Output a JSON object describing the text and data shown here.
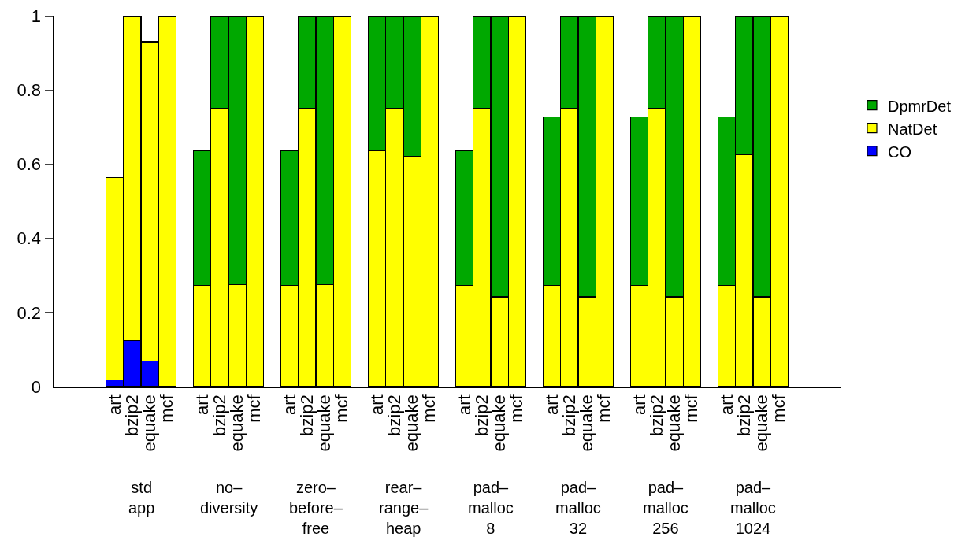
{
  "chart_data": {
    "type": "bar",
    "stacked": true,
    "categories": [
      null,
      null,
      null,
      "art",
      "bzip2",
      "equake",
      "mcf",
      null,
      "art",
      "bzip2",
      "equake",
      "mcf",
      null,
      "art",
      "bzip2",
      "equake",
      "mcf",
      null,
      "art",
      "bzip2",
      "equake",
      "mcf",
      null,
      "art",
      "bzip2",
      "equake",
      "mcf",
      null,
      "art",
      "bzip2",
      "equake",
      "mcf",
      null,
      "art",
      "bzip2",
      "equake",
      "mcf",
      null,
      "art",
      "bzip2",
      "equake",
      "mcf",
      null,
      null,
      null
    ],
    "series": [
      {
        "name": "CO",
        "color": "#0000ff",
        "values": [
          null,
          null,
          null,
          0.018,
          0.125,
          0.069,
          null,
          null,
          null,
          null,
          null,
          null,
          null,
          null,
          null,
          null,
          null,
          null,
          null,
          null,
          null,
          null,
          null,
          null,
          null,
          null,
          null,
          null,
          null,
          null,
          null,
          null,
          null,
          null,
          null,
          null,
          null,
          null,
          null,
          null,
          null,
          null,
          null,
          null,
          null
        ]
      },
      {
        "name": "NatDet",
        "color": "#ffff00",
        "values": [
          null,
          null,
          null,
          0.545,
          0.875,
          0.861,
          1,
          null,
          0.273,
          0.75,
          0.275,
          1,
          null,
          0.273,
          0.75,
          0.275,
          1,
          null,
          0.636,
          0.75,
          0.62,
          1,
          null,
          0.273,
          0.75,
          0.242,
          1,
          null,
          0.273,
          0.75,
          0.242,
          1,
          null,
          0.273,
          0.75,
          0.242,
          1,
          null,
          0.273,
          0.625,
          0.242,
          1,
          null,
          null,
          null
        ]
      },
      {
        "name": "DpmrDet",
        "color": "#00a800",
        "values": [
          null,
          null,
          null,
          null,
          null,
          null,
          null,
          null,
          0.364,
          0.25,
          0.725,
          null,
          null,
          0.364,
          0.25,
          0.725,
          null,
          null,
          0.364,
          0.25,
          0.38,
          null,
          null,
          0.364,
          0.25,
          0.758,
          null,
          null,
          0.455,
          0.25,
          0.758,
          null,
          null,
          0.455,
          0.25,
          0.758,
          null,
          null,
          0.455,
          0.375,
          0.758,
          null,
          null,
          null,
          null
        ]
      }
    ],
    "ylim": [
      0,
      1
    ],
    "yticks": [
      0,
      0.2,
      0.4,
      0.6,
      0.8,
      1
    ],
    "grid": false,
    "legend": "right",
    "annotations": [
      "std\napp",
      "no–\ndiversity",
      "zero–\nbefore–\nfree",
      "rear–\nrange–\nheap",
      "pad–\nmalloc\n8",
      "pad–\nmalloc\n32",
      "pad–\nmalloc\n256",
      "pad–\nmalloc\n1024"
    ]
  }
}
